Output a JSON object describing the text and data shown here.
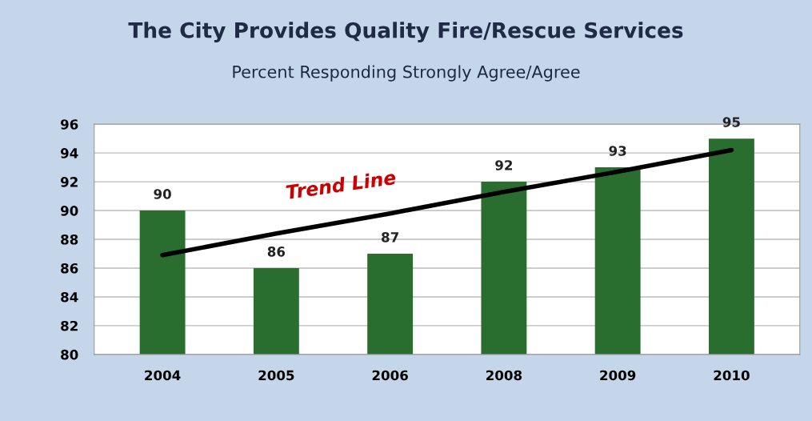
{
  "chart_data": {
    "type": "bar",
    "title": "The City Provides Quality Fire/Rescue Services",
    "subtitle": "Percent Responding Strongly Agree/Agree",
    "categories": [
      "2004",
      "2005",
      "2006",
      "2008",
      "2009",
      "2010"
    ],
    "series": [
      {
        "color": "#2a6e2f",
        "values": [
          90,
          86,
          87,
          92,
          93,
          95
        ],
        "value_labels": [
          "90",
          "86",
          "87",
          "92",
          "93",
          "95"
        ]
      },
      {
        "type": "line",
        "color": "#000000",
        "values": [
          86.9,
          88.4,
          89.8,
          91.3,
          92.7,
          94.2
        ]
      }
    ],
    "ylim": [
      80,
      96
    ],
    "yticks": [
      80,
      82,
      84,
      86,
      88,
      90,
      92,
      94,
      96
    ],
    "grid": "y",
    "annotations": [
      "Trend Line"
    ]
  }
}
